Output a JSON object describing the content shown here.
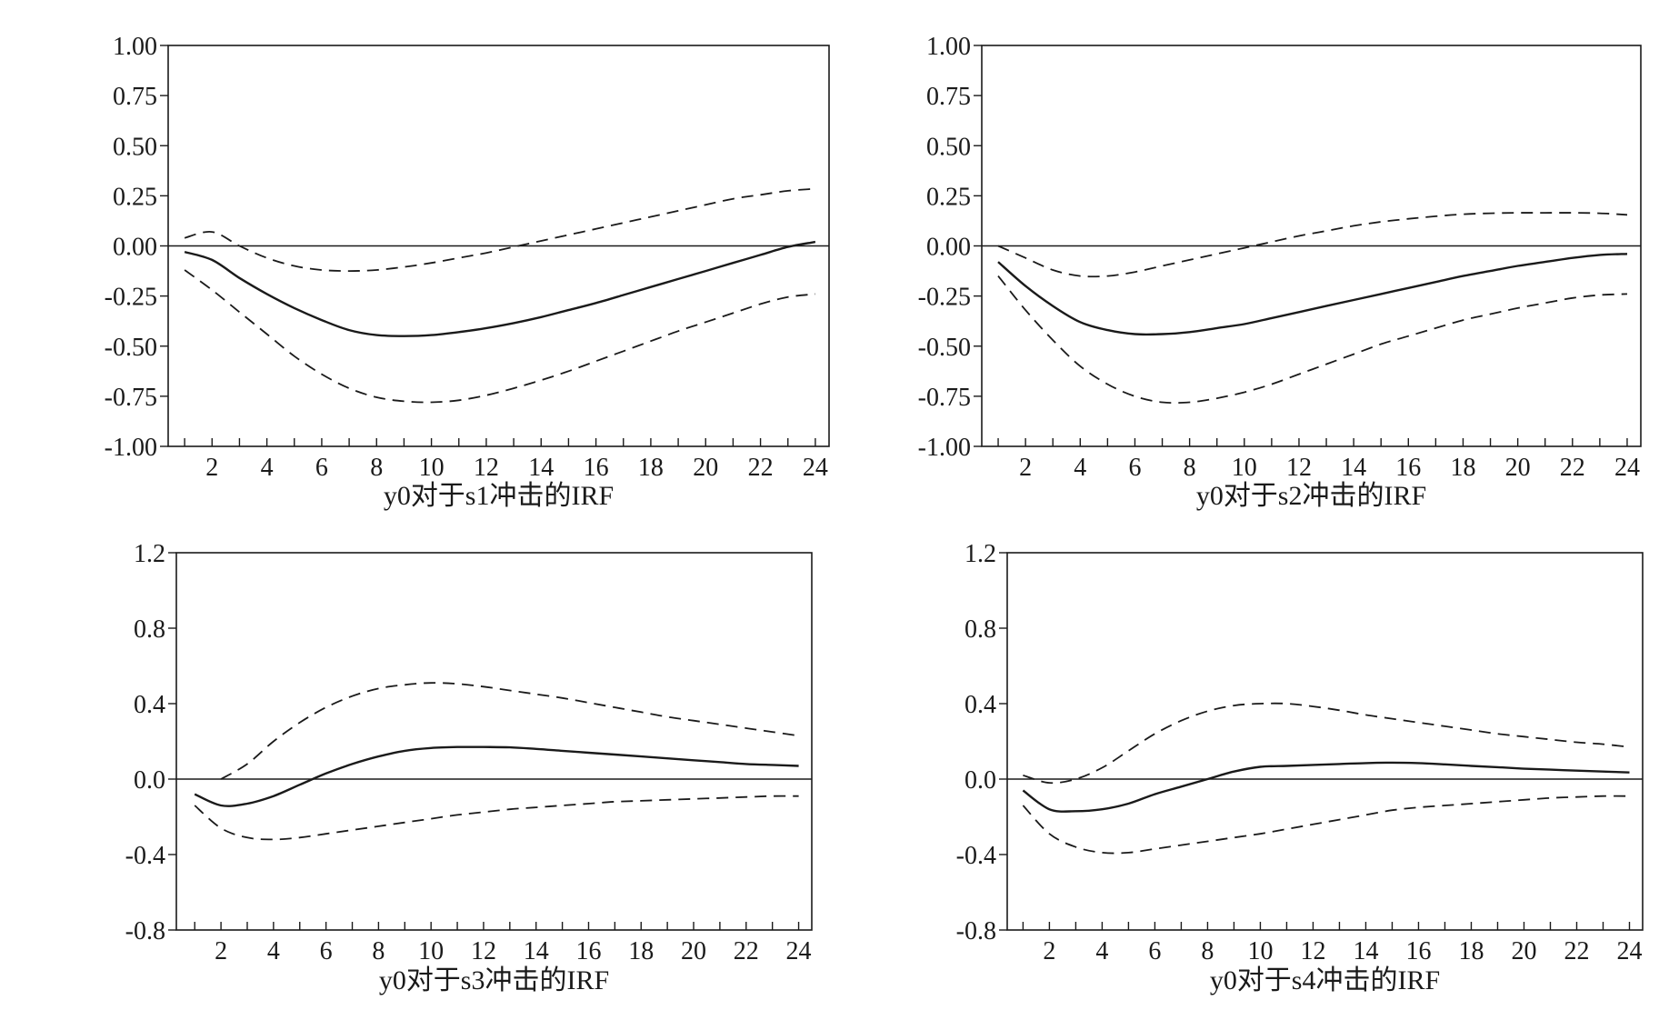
{
  "chart_data": [
    {
      "type": "line",
      "caption": "y0对于s1冲击的IRF",
      "x": [
        1,
        2,
        3,
        4,
        5,
        6,
        7,
        8,
        9,
        10,
        11,
        12,
        13,
        14,
        15,
        16,
        17,
        18,
        19,
        20,
        21,
        22,
        23,
        24
      ],
      "xticks": [
        2,
        4,
        6,
        8,
        10,
        12,
        14,
        16,
        18,
        20,
        22,
        24
      ],
      "xlim": [
        0.4,
        24.5
      ],
      "ylim": [
        -1.0,
        1.0
      ],
      "yticks": [
        1.0,
        0.75,
        0.5,
        0.25,
        0.0,
        -0.25,
        -0.5,
        -0.75,
        -1.0
      ],
      "ytick_labels": [
        "1.00",
        "0.75",
        "0.50",
        "0.25",
        "0.00",
        "-0.25",
        "-0.50",
        "-0.75",
        "-1.00"
      ],
      "series": [
        {
          "style": "solid",
          "values": [
            -0.03,
            -0.07,
            -0.16,
            -0.24,
            -0.31,
            -0.37,
            -0.42,
            -0.445,
            -0.45,
            -0.445,
            -0.43,
            -0.41,
            -0.385,
            -0.355,
            -0.32,
            -0.285,
            -0.245,
            -0.205,
            -0.165,
            -0.125,
            -0.085,
            -0.045,
            -0.005,
            0.02
          ]
        },
        {
          "style": "dashed",
          "values": [
            0.04,
            0.07,
            0.0,
            -0.06,
            -0.1,
            -0.12,
            -0.125,
            -0.12,
            -0.105,
            -0.085,
            -0.06,
            -0.035,
            -0.005,
            0.025,
            0.055,
            0.085,
            0.115,
            0.145,
            0.175,
            0.205,
            0.235,
            0.255,
            0.275,
            0.285
          ]
        },
        {
          "style": "dashed",
          "values": [
            -0.12,
            -0.22,
            -0.33,
            -0.44,
            -0.55,
            -0.64,
            -0.71,
            -0.755,
            -0.775,
            -0.78,
            -0.77,
            -0.745,
            -0.71,
            -0.67,
            -0.625,
            -0.575,
            -0.525,
            -0.475,
            -0.425,
            -0.38,
            -0.335,
            -0.29,
            -0.255,
            -0.24
          ]
        }
      ]
    },
    {
      "type": "line",
      "caption": "y0对于s2冲击的IRF",
      "x": [
        1,
        2,
        3,
        4,
        5,
        6,
        7,
        8,
        9,
        10,
        11,
        12,
        13,
        14,
        15,
        16,
        17,
        18,
        19,
        20,
        21,
        22,
        23,
        24
      ],
      "xticks": [
        2,
        4,
        6,
        8,
        10,
        12,
        14,
        16,
        18,
        20,
        22,
        24
      ],
      "xlim": [
        0.4,
        24.5
      ],
      "ylim": [
        -1.0,
        1.0
      ],
      "yticks": [
        1.0,
        0.75,
        0.5,
        0.25,
        0.0,
        -0.25,
        -0.5,
        -0.75,
        -1.0
      ],
      "ytick_labels": [
        "1.00",
        "0.75",
        "0.50",
        "0.25",
        "0.00",
        "-0.25",
        "-0.50",
        "-0.75",
        "-1.00"
      ],
      "series": [
        {
          "style": "solid",
          "values": [
            -0.08,
            -0.2,
            -0.3,
            -0.38,
            -0.42,
            -0.44,
            -0.44,
            -0.43,
            -0.41,
            -0.39,
            -0.36,
            -0.33,
            -0.3,
            -0.27,
            -0.24,
            -0.21,
            -0.18,
            -0.15,
            -0.125,
            -0.1,
            -0.08,
            -0.06,
            -0.045,
            -0.04
          ]
        },
        {
          "style": "dashed",
          "values": [
            0.0,
            -0.06,
            -0.12,
            -0.15,
            -0.15,
            -0.13,
            -0.1,
            -0.07,
            -0.04,
            -0.01,
            0.02,
            0.05,
            0.075,
            0.1,
            0.12,
            0.135,
            0.148,
            0.158,
            0.163,
            0.165,
            0.165,
            0.165,
            0.163,
            0.155
          ]
        },
        {
          "style": "dashed",
          "values": [
            -0.15,
            -0.32,
            -0.47,
            -0.6,
            -0.69,
            -0.75,
            -0.78,
            -0.78,
            -0.76,
            -0.73,
            -0.69,
            -0.64,
            -0.59,
            -0.54,
            -0.49,
            -0.45,
            -0.41,
            -0.37,
            -0.34,
            -0.31,
            -0.285,
            -0.26,
            -0.245,
            -0.24
          ]
        }
      ]
    },
    {
      "type": "line",
      "caption": "y0对于s3冲击的IRF",
      "x": [
        1,
        2,
        3,
        4,
        5,
        6,
        7,
        8,
        9,
        10,
        11,
        12,
        13,
        14,
        15,
        16,
        17,
        18,
        19,
        20,
        21,
        22,
        23,
        24
      ],
      "xticks": [
        2,
        4,
        6,
        8,
        10,
        12,
        14,
        16,
        18,
        20,
        22,
        24
      ],
      "xlim": [
        0.3,
        24.5
      ],
      "ylim": [
        -0.8,
        1.2
      ],
      "yticks": [
        1.2,
        0.8,
        0.4,
        0.0,
        -0.4,
        -0.8
      ],
      "ytick_labels": [
        "1.2",
        "0.8",
        "0.4",
        "0.0",
        "-0.4",
        "-0.8"
      ],
      "series": [
        {
          "style": "solid",
          "values": [
            -0.08,
            -0.14,
            -0.13,
            -0.09,
            -0.03,
            0.03,
            0.08,
            0.12,
            0.15,
            0.165,
            0.17,
            0.17,
            0.168,
            0.16,
            0.15,
            0.14,
            0.13,
            0.12,
            0.11,
            0.1,
            0.09,
            0.08,
            0.075,
            0.07
          ]
        },
        {
          "style": "dashed",
          "values": [
            null,
            0.0,
            0.08,
            0.2,
            0.3,
            0.38,
            0.44,
            0.48,
            0.5,
            0.51,
            0.505,
            0.49,
            0.47,
            0.45,
            0.43,
            0.405,
            0.38,
            0.355,
            0.33,
            0.31,
            0.29,
            0.27,
            0.25,
            0.23
          ]
        },
        {
          "style": "dashed",
          "values": [
            -0.14,
            -0.26,
            -0.31,
            -0.32,
            -0.31,
            -0.29,
            -0.27,
            -0.25,
            -0.23,
            -0.21,
            -0.19,
            -0.175,
            -0.16,
            -0.15,
            -0.14,
            -0.13,
            -0.12,
            -0.115,
            -0.11,
            -0.105,
            -0.1,
            -0.095,
            -0.09,
            -0.09
          ]
        }
      ]
    },
    {
      "type": "line",
      "caption": "y0对于s4冲击的IRF",
      "x": [
        1,
        2,
        3,
        4,
        5,
        6,
        7,
        8,
        9,
        10,
        11,
        12,
        13,
        14,
        15,
        16,
        17,
        18,
        19,
        20,
        21,
        22,
        23,
        24
      ],
      "xticks": [
        2,
        4,
        6,
        8,
        10,
        12,
        14,
        16,
        18,
        20,
        22,
        24
      ],
      "xlim": [
        0.4,
        24.5
      ],
      "ylim": [
        -0.8,
        1.2
      ],
      "yticks": [
        1.2,
        0.8,
        0.4,
        0.0,
        -0.4,
        -0.8
      ],
      "ytick_labels": [
        "1.2",
        "0.8",
        "0.4",
        "0.0",
        "-0.4",
        "-0.8"
      ],
      "series": [
        {
          "style": "solid",
          "values": [
            -0.06,
            -0.16,
            -0.17,
            -0.16,
            -0.13,
            -0.08,
            -0.04,
            0.0,
            0.04,
            0.065,
            0.07,
            0.075,
            0.08,
            0.085,
            0.087,
            0.085,
            0.078,
            0.07,
            0.063,
            0.055,
            0.05,
            0.045,
            0.04,
            0.035
          ]
        },
        {
          "style": "dashed",
          "values": [
            0.02,
            -0.02,
            0.0,
            0.06,
            0.15,
            0.24,
            0.31,
            0.36,
            0.39,
            0.4,
            0.4,
            0.385,
            0.365,
            0.34,
            0.32,
            0.3,
            0.28,
            0.26,
            0.24,
            0.225,
            0.21,
            0.195,
            0.185,
            0.17
          ]
        },
        {
          "style": "dashed",
          "values": [
            -0.14,
            -0.29,
            -0.36,
            -0.39,
            -0.39,
            -0.37,
            -0.35,
            -0.33,
            -0.31,
            -0.29,
            -0.265,
            -0.24,
            -0.215,
            -0.19,
            -0.165,
            -0.15,
            -0.14,
            -0.13,
            -0.12,
            -0.11,
            -0.1,
            -0.095,
            -0.09,
            -0.09
          ]
        }
      ]
    }
  ]
}
